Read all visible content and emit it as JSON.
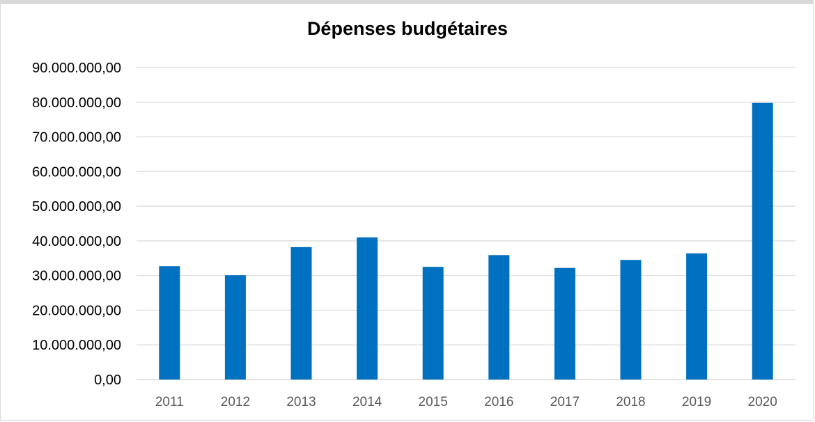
{
  "chart_data": {
    "type": "bar",
    "title": "Dépenses budgétaires",
    "categories": [
      "2011",
      "2012",
      "2013",
      "2014",
      "2015",
      "2016",
      "2017",
      "2018",
      "2019",
      "2020"
    ],
    "values": [
      32700000,
      30100000,
      38200000,
      41000000,
      32500000,
      35900000,
      32200000,
      34500000,
      36400000,
      79800000
    ],
    "yticks": [
      "0,00",
      "10.000.000,00",
      "20.000.000,00",
      "30.000.000,00",
      "40.000.000,00",
      "50.000.000,00",
      "60.000.000,00",
      "70.000.000,00",
      "80.000.000,00",
      "90.000.000,00"
    ],
    "ylim": [
      0,
      90000000
    ],
    "xlabel": "",
    "ylabel": "",
    "grid": true,
    "legend": "none",
    "bar_color": "#0070c0",
    "grid_color": "#d9d9d9"
  }
}
